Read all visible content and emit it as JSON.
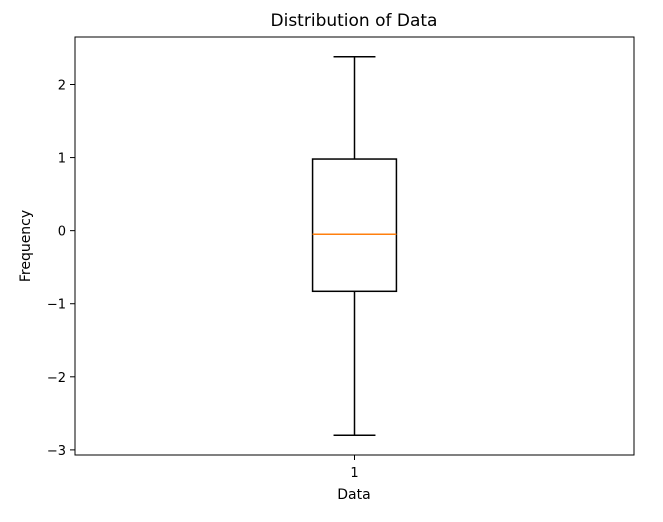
{
  "chart_data": {
    "type": "boxplot",
    "title": "Distribution of Data",
    "xlabel": "Data",
    "ylabel": "Frequency",
    "categories": [
      "1"
    ],
    "series": [
      {
        "whisker_low": -2.8,
        "q1": -0.83,
        "median": -0.05,
        "q3": 0.98,
        "whisker_high": 2.38
      }
    ],
    "ylim": [
      -3.07,
      2.65
    ],
    "yticks": [
      -3,
      -2,
      -1,
      0,
      1,
      2
    ],
    "ytick_labels": [
      "−3",
      "−2",
      "−1",
      "0",
      "1",
      "2"
    ],
    "grid": false,
    "colors": {
      "box": "#000000",
      "median": "#ff7f0e",
      "axes": "#000000"
    }
  }
}
